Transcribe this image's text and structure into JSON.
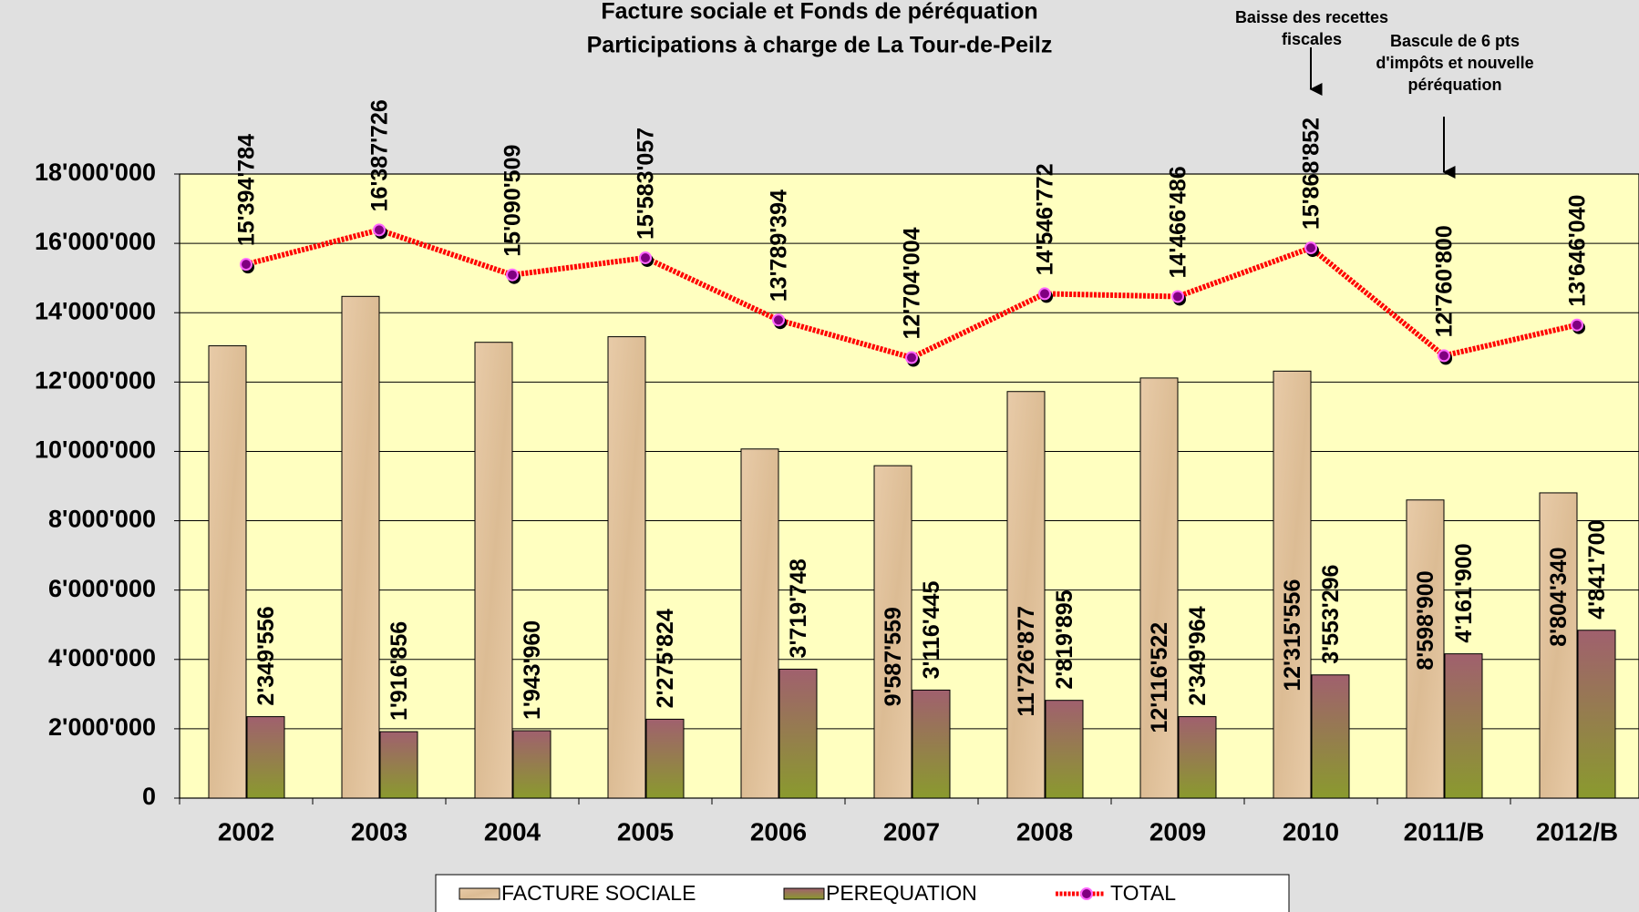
{
  "chart_data": {
    "type": "bar",
    "title": "Facture sociale et Fonds de péréquation",
    "subtitle": "Participations à charge de La Tour-de-Peilz",
    "categories": [
      "2002",
      "2003",
      "2004",
      "2005",
      "2006",
      "2007",
      "2008",
      "2009",
      "2010",
      "2011/B",
      "2012/B"
    ],
    "series": [
      {
        "name": "FACTURE SOCIALE",
        "type": "bar",
        "color": "#e6c8a2",
        "values": [
          13045228,
          14470870,
          13146549,
          13307233,
          10069646,
          9587559,
          11726877,
          12116522,
          12315556,
          8598900,
          8804340
        ],
        "value_labels": [
          null,
          null,
          null,
          null,
          null,
          "9'587'559",
          "11'726'877",
          "12'116'522",
          "12'315'556",
          "8'598'900",
          "8'804'340"
        ]
      },
      {
        "name": "PEREQUATION",
        "type": "bar",
        "color": "#8e6a5c",
        "values": [
          2349556,
          1916856,
          1943960,
          2275824,
          3719748,
          3116445,
          2819895,
          2349964,
          3553296,
          4161900,
          4841700
        ],
        "value_labels": [
          "2'349'556",
          "1'916'856",
          "1'943'960",
          "2'275'824",
          "3'719'748",
          "3'116'445",
          "2'819'895",
          "2'349'964",
          "3'553'296",
          "4'161'900",
          "4'841'700"
        ]
      },
      {
        "name": "TOTAL",
        "type": "line",
        "color": "#ff0000",
        "values": [
          15394784,
          16387726,
          15090509,
          15583057,
          13789394,
          12704004,
          14546772,
          14466486,
          15868852,
          12760800,
          13646040
        ],
        "value_labels": [
          "15'394'784",
          "16'387'726",
          "15'090'509",
          "15'583'057",
          "13'789'394",
          "12'704'004",
          "14'546'772",
          "14'466'486",
          "15'868'852",
          "12'760'800",
          "13'646'040"
        ]
      }
    ],
    "ylim": [
      0,
      18000000
    ],
    "yticks": [
      0,
      {
        "value": 2000000,
        "label": "2'000'000"
      },
      {
        "value": 4000000,
        "label": "4'000'000"
      },
      {
        "value": 6000000,
        "label": "6'000'000"
      },
      {
        "value": 8000000,
        "label": "8'000'000"
      },
      {
        "value": 10000000,
        "label": "10'000'000"
      },
      {
        "value": 12000000,
        "label": "12'000'000"
      },
      {
        "value": 14000000,
        "label": "14'000'000"
      },
      {
        "value": 16000000,
        "label": "16'000'000"
      },
      {
        "value": 18000000,
        "label": "18'000'000"
      }
    ],
    "grid": true,
    "legend": "bottom",
    "annotations": [
      {
        "category": "2010",
        "lines": [
          "Baisse des recettes",
          "fiscales"
        ]
      },
      {
        "category": "2011/B",
        "lines": [
          "Bascule de 6 pts",
          "d'impôts et nouvelle",
          "péréquation"
        ]
      }
    ]
  }
}
